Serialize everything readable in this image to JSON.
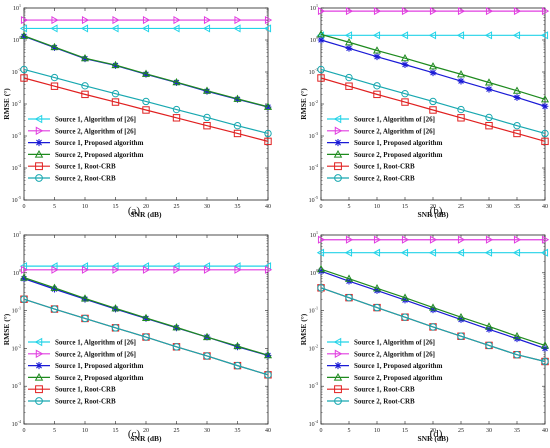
{
  "figure": {
    "panels": [
      {
        "caption": "(a)",
        "legend_placement": "bottom-left"
      },
      {
        "caption": "(b)",
        "legend_placement": "bottom-left"
      },
      {
        "caption": "(c)",
        "legend_placement": "bottom-left"
      },
      {
        "caption": "(d)",
        "legend_placement": "bottom-left"
      }
    ]
  },
  "series_styles": [
    {
      "color": "#22d3e8",
      "marker": "triangle-left"
    },
    {
      "color": "#e13ee0",
      "marker": "triangle-right"
    },
    {
      "color": "#1a1ad6",
      "marker": "star"
    },
    {
      "color": "#1e8a1e",
      "marker": "triangle-up"
    },
    {
      "color": "#e02020",
      "marker": "square"
    },
    {
      "color": "#18a8b0",
      "marker": "circle"
    }
  ],
  "chart_data": [
    {
      "type": "line",
      "title": "",
      "xlabel": "SNR (dB)",
      "ylabel": "RMSE (°)",
      "xlim": [
        0,
        40
      ],
      "ylim_log10": [
        -5,
        1
      ],
      "y_scale": "log",
      "grid": false,
      "legend_placement": "bottom-left",
      "x_ticks": [
        "0",
        "5",
        "10",
        "15",
        "20",
        "25",
        "30",
        "35",
        "40"
      ],
      "y_tick_exponents": [
        "1",
        "0",
        "-1",
        "-2",
        "-3",
        "-4",
        "-5"
      ],
      "x": [
        0,
        5,
        10,
        15,
        20,
        25,
        30,
        35,
        40
      ],
      "series": [
        {
          "name": "Source 1, Algorithm of [26]",
          "values": [
            2.3,
            2.3,
            2.3,
            2.3,
            2.3,
            2.3,
            2.3,
            2.3,
            2.3
          ]
        },
        {
          "name": "Source 2, Algorithm of [26]",
          "values": [
            4.2,
            4.2,
            4.2,
            4.2,
            4.2,
            4.2,
            4.2,
            4.2,
            4.2
          ]
        },
        {
          "name": "Source 1, Proposed algorithm",
          "values": [
            1.3,
            0.58,
            0.26,
            0.16,
            0.085,
            0.047,
            0.025,
            0.014,
            0.008
          ]
        },
        {
          "name": "Source 2, Proposed algorithm",
          "values": [
            1.35,
            0.6,
            0.27,
            0.165,
            0.088,
            0.048,
            0.026,
            0.0145,
            0.0082
          ]
        },
        {
          "name": "Source 1, Root-CRB",
          "values": [
            0.065,
            0.036,
            0.02,
            0.0115,
            0.0065,
            0.0037,
            0.0021,
            0.0012,
            0.00068
          ]
        },
        {
          "name": "Source 2, Root-CRB",
          "values": [
            0.12,
            0.067,
            0.037,
            0.021,
            0.012,
            0.0067,
            0.0038,
            0.0021,
            0.0012
          ]
        }
      ]
    },
    {
      "type": "line",
      "title": "",
      "xlabel": "SNR (dB)",
      "ylabel": "RMSE (°)",
      "xlim": [
        0,
        40
      ],
      "ylim_log10": [
        -5,
        1
      ],
      "y_scale": "log",
      "grid": false,
      "legend_placement": "bottom-left",
      "x_ticks": [
        "0",
        "5",
        "10",
        "15",
        "20",
        "25",
        "30",
        "35",
        "40"
      ],
      "y_tick_exponents": [
        "1",
        "0",
        "-1",
        "-2",
        "-3",
        "-4",
        "-5"
      ],
      "x": [
        0,
        5,
        10,
        15,
        20,
        25,
        30,
        35,
        40
      ],
      "series": [
        {
          "name": "Source 1, Algorithm of [26]",
          "values": [
            1.4,
            1.4,
            1.4,
            1.4,
            1.4,
            1.4,
            1.4,
            1.4,
            1.4
          ]
        },
        {
          "name": "Source 2, Algorithm of [26]",
          "values": [
            8.0,
            8.0,
            8.0,
            8.0,
            8.0,
            8.0,
            8.0,
            8.0,
            8.0
          ]
        },
        {
          "name": "Source 1, Proposed algorithm",
          "values": [
            1.0,
            0.55,
            0.3,
            0.17,
            0.095,
            0.052,
            0.029,
            0.016,
            0.0085
          ]
        },
        {
          "name": "Source 2, Proposed algorithm",
          "values": [
            1.5,
            0.85,
            0.47,
            0.27,
            0.15,
            0.085,
            0.047,
            0.026,
            0.014
          ]
        },
        {
          "name": "Source 1, Root-CRB",
          "values": [
            0.065,
            0.036,
            0.02,
            0.0115,
            0.0065,
            0.0037,
            0.0021,
            0.0012,
            0.00068
          ]
        },
        {
          "name": "Source 2, Root-CRB",
          "values": [
            0.12,
            0.067,
            0.037,
            0.021,
            0.012,
            0.0067,
            0.0038,
            0.0021,
            0.0012
          ]
        }
      ]
    },
    {
      "type": "line",
      "title": "",
      "xlabel": "SNR (dB)",
      "ylabel": "RMSE (°)",
      "xlim": [
        0,
        40
      ],
      "ylim_log10": [
        -4,
        1
      ],
      "y_scale": "log",
      "grid": false,
      "legend_placement": "bottom-left",
      "x_ticks": [
        "0",
        "5",
        "10",
        "15",
        "20",
        "25",
        "30",
        "35",
        "40"
      ],
      "y_tick_exponents": [
        "1",
        "0",
        "-1",
        "-2",
        "-3",
        "-4"
      ],
      "x": [
        0,
        5,
        10,
        15,
        20,
        25,
        30,
        35,
        40
      ],
      "series": [
        {
          "name": "Source 1, Algorithm of [26]",
          "values": [
            1.5,
            1.5,
            1.5,
            1.5,
            1.5,
            1.5,
            1.5,
            1.5,
            1.5
          ]
        },
        {
          "name": "Source 2, Algorithm of [26]",
          "values": [
            1.2,
            1.2,
            1.2,
            1.2,
            1.2,
            1.2,
            1.2,
            1.2,
            1.2
          ]
        },
        {
          "name": "Source 1, Proposed algorithm",
          "values": [
            0.7,
            0.37,
            0.2,
            0.11,
            0.062,
            0.035,
            0.02,
            0.011,
            0.0065
          ]
        },
        {
          "name": "Source 2, Proposed algorithm",
          "values": [
            0.75,
            0.4,
            0.21,
            0.115,
            0.064,
            0.036,
            0.02,
            0.0115,
            0.0066
          ]
        },
        {
          "name": "Source 1, Root-CRB",
          "values": [
            0.2,
            0.11,
            0.062,
            0.035,
            0.02,
            0.011,
            0.0063,
            0.0035,
            0.002
          ]
        },
        {
          "name": "Source 2, Root-CRB",
          "values": [
            0.2,
            0.11,
            0.062,
            0.035,
            0.02,
            0.011,
            0.0063,
            0.0035,
            0.002
          ]
        }
      ]
    },
    {
      "type": "line",
      "title": "",
      "xlabel": "SNR (dB)",
      "ylabel": "RMSE (°)",
      "xlim": [
        0,
        40
      ],
      "ylim_log10": [
        -4,
        1
      ],
      "y_scale": "log",
      "grid": false,
      "legend_placement": "bottom-left",
      "x_ticks": [
        "0",
        "5",
        "10",
        "15",
        "20",
        "25",
        "30",
        "35",
        "40"
      ],
      "y_tick_exponents": [
        "1",
        "0",
        "-1",
        "-2",
        "-3",
        "-4"
      ],
      "x": [
        0,
        5,
        10,
        15,
        20,
        25,
        30,
        35,
        40
      ],
      "series": [
        {
          "name": "Source 1, Algorithm of [26]",
          "values": [
            3.4,
            3.4,
            3.4,
            3.4,
            3.4,
            3.4,
            3.4,
            3.4,
            3.4
          ]
        },
        {
          "name": "Source 2, Algorithm of [26]",
          "values": [
            7.5,
            7.5,
            7.5,
            7.5,
            7.5,
            7.5,
            7.5,
            7.5,
            7.5
          ]
        },
        {
          "name": "Source 1, Proposed algorithm",
          "values": [
            1.1,
            0.6,
            0.34,
            0.19,
            0.105,
            0.058,
            0.032,
            0.018,
            0.01
          ]
        },
        {
          "name": "Source 2, Proposed algorithm",
          "values": [
            1.25,
            0.7,
            0.39,
            0.22,
            0.12,
            0.067,
            0.038,
            0.021,
            0.012
          ]
        },
        {
          "name": "Source 1, Root-CRB",
          "values": [
            0.4,
            0.22,
            0.12,
            0.067,
            0.037,
            0.021,
            0.012,
            0.0068,
            0.0045
          ]
        },
        {
          "name": "Source 2, Root-CRB",
          "values": [
            0.4,
            0.22,
            0.12,
            0.067,
            0.037,
            0.021,
            0.012,
            0.0068,
            0.0045
          ]
        }
      ]
    }
  ]
}
